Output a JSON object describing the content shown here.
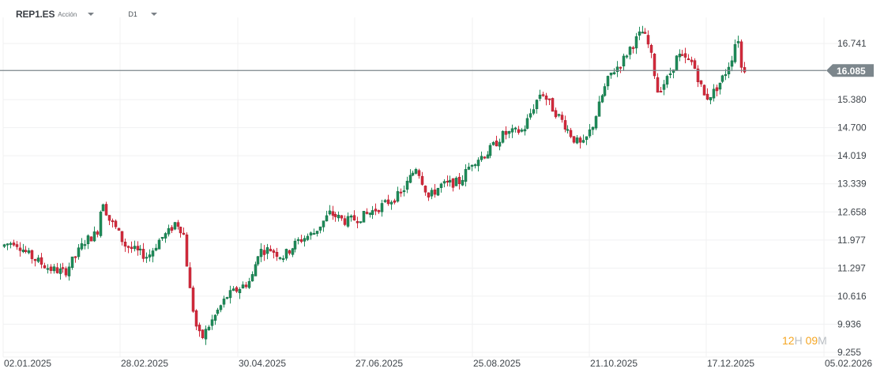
{
  "header": {
    "symbol": "REP1.ES",
    "instrument_type": "Acción",
    "timeframe": "D1"
  },
  "countdown": {
    "hours": "12",
    "hours_unit": "H",
    "minutes": "09",
    "minutes_unit": "M"
  },
  "current_price": {
    "label": "16.085",
    "value": 16.085
  },
  "colors": {
    "bullish": "#1e8c5a",
    "bearish": "#d42a3c",
    "grid": "#f0f1f2",
    "price_line": "#7c868c",
    "price_badge": "#7c868c",
    "countdown_accent": "#f5a623"
  },
  "chart_data": {
    "type": "candlestick",
    "title": "REP1.ES",
    "xlabel": "",
    "ylabel": "",
    "ylim": [
      9.255,
      17.2
    ],
    "grid": true,
    "y_ticks": [
      "16.741",
      "15.380",
      "14.700",
      "14.019",
      "13.339",
      "12.658",
      "11.977",
      "11.297",
      "10.616",
      "9.936",
      "9.255"
    ],
    "y_tick_values": [
      16.741,
      15.38,
      14.7,
      14.019,
      13.339,
      12.658,
      11.977,
      11.297,
      10.616,
      9.936,
      9.255
    ],
    "x_ticks": [
      "02.01.2025",
      "28.02.2025",
      "30.04.2025",
      "27.06.2025",
      "25.08.2025",
      "21.10.2025",
      "17.12.2025",
      "05.02.2026"
    ],
    "last_price": 16.085,
    "path": [
      [
        4,
        11.82
      ],
      [
        20,
        11.95
      ],
      [
        40,
        11.6
      ],
      [
        65,
        11.28
      ],
      [
        85,
        11.19
      ],
      [
        110,
        11.95
      ],
      [
        125,
        12.15
      ],
      [
        132,
        13.0
      ],
      [
        140,
        12.5
      ],
      [
        150,
        12.24
      ],
      [
        160,
        11.86
      ],
      [
        175,
        11.7
      ],
      [
        190,
        11.57
      ],
      [
        205,
        12.0
      ],
      [
        215,
        12.15
      ],
      [
        225,
        12.43
      ],
      [
        235,
        12.15
      ],
      [
        242,
        10.9
      ],
      [
        250,
        9.94
      ],
      [
        257,
        9.56
      ],
      [
        265,
        9.85
      ],
      [
        290,
        10.61
      ],
      [
        320,
        11.0
      ],
      [
        330,
        11.71
      ],
      [
        345,
        11.75
      ],
      [
        360,
        11.57
      ],
      [
        380,
        11.95
      ],
      [
        400,
        12.15
      ],
      [
        420,
        12.63
      ],
      [
        440,
        12.43
      ],
      [
        455,
        12.5
      ],
      [
        470,
        12.63
      ],
      [
        490,
        12.85
      ],
      [
        510,
        13.1
      ],
      [
        530,
        13.77
      ],
      [
        545,
        13.01
      ],
      [
        560,
        13.3
      ],
      [
        585,
        13.39
      ],
      [
        600,
        13.87
      ],
      [
        620,
        14.1
      ],
      [
        640,
        14.54
      ],
      [
        665,
        14.64
      ],
      [
        678,
        15.2
      ],
      [
        688,
        15.59
      ],
      [
        700,
        15.21
      ],
      [
        715,
        14.83
      ],
      [
        730,
        14.4
      ],
      [
        740,
        14.25
      ],
      [
        752,
        14.73
      ],
      [
        765,
        15.5
      ],
      [
        775,
        15.98
      ],
      [
        790,
        16.3
      ],
      [
        800,
        16.64
      ],
      [
        815,
        17.03
      ],
      [
        822,
        16.8
      ],
      [
        828,
        16.36
      ],
      [
        835,
        15.59
      ],
      [
        848,
        15.9
      ],
      [
        860,
        16.45
      ],
      [
        880,
        16.26
      ],
      [
        895,
        15.4
      ],
      [
        905,
        15.55
      ],
      [
        920,
        15.98
      ],
      [
        930,
        16.45
      ],
      [
        936,
        17.03
      ],
      [
        941,
        16.13
      ]
    ]
  }
}
